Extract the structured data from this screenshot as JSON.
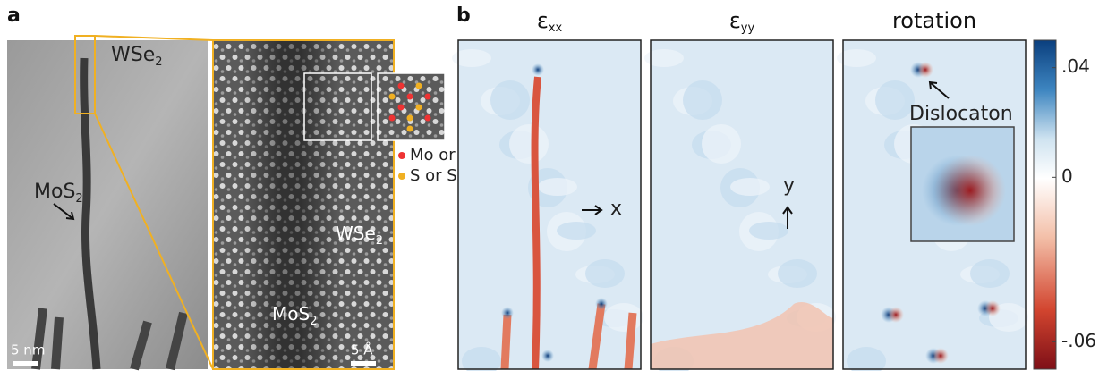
{
  "panel_a": {
    "label": "a",
    "overview": {
      "wse2": {
        "base": "WSe",
        "sub": "2"
      },
      "mos2": {
        "base": "MoS",
        "sub": "2"
      },
      "scale": "5 nm"
    },
    "zoom": {
      "wse2": {
        "base": "WSe",
        "sub": "2"
      },
      "mos2": {
        "base": "MoS",
        "sub": "2"
      },
      "scale": "5 Å"
    },
    "legend": [
      "Mo or W",
      "S or Se"
    ]
  },
  "panel_b": {
    "label": "b",
    "maps": [
      {
        "title": {
          "base": "ε",
          "sub": "xx"
        },
        "axis": "x"
      },
      {
        "title": {
          "base": "ε",
          "sub": "yy"
        },
        "axis": "y"
      },
      {
        "title": {
          "base": "rotation",
          "sub": ""
        },
        "annotation": "Dislocaton"
      }
    ],
    "colorbar": {
      "lim": [
        -0.07,
        0.05
      ],
      "ticks": [
        {
          "value": 0.04,
          "label": ".04"
        },
        0,
        {
          "value": -0.06,
          "label": "-.06"
        }
      ]
    }
  }
}
